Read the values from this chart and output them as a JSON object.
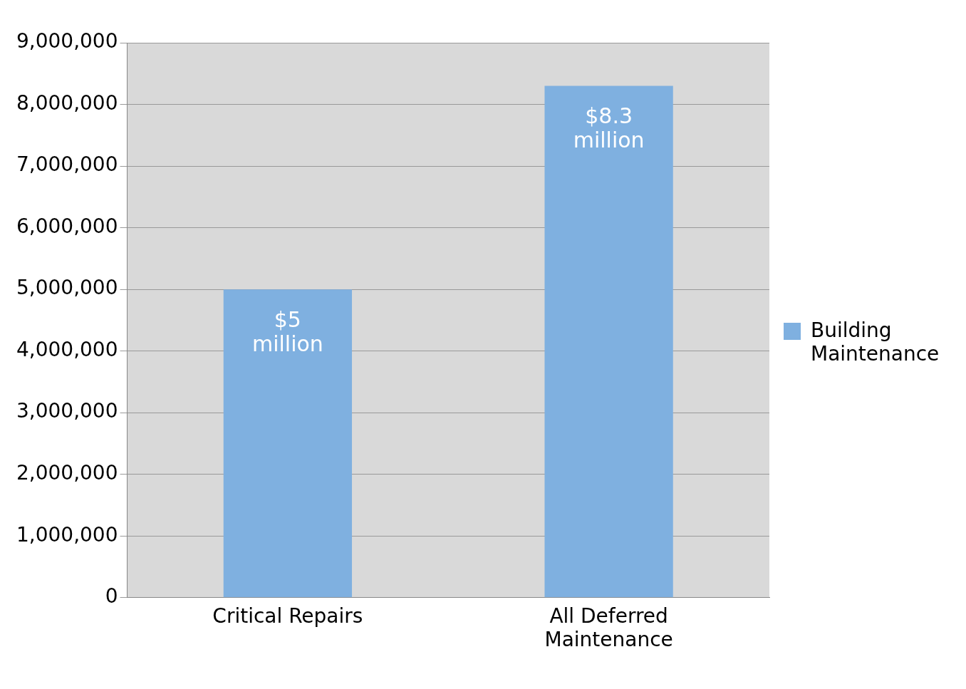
{
  "chart_data": {
    "type": "bar",
    "categories": [
      "Critical Repairs",
      "All Deferred Maintenance"
    ],
    "series": [
      {
        "name": "Building Maintenance",
        "color": "#7fb0e0",
        "values": [
          5000000,
          8300000
        ],
        "value_labels": [
          "$5 million",
          "$8.3 million"
        ]
      }
    ],
    "ylim": [
      0,
      9000000
    ],
    "yticks": [
      0,
      {
        "value": 1000000,
        "label": "1,000,000"
      },
      {
        "value": 2000000,
        "label": "2,000,000"
      },
      {
        "value": 3000000,
        "label": "3,000,000"
      },
      {
        "value": 4000000,
        "label": "4,000,000"
      },
      {
        "value": 5000000,
        "label": "5,000,000"
      },
      {
        "value": 6000000,
        "label": "6,000,000"
      },
      {
        "value": 7000000,
        "label": "7,000,000"
      },
      {
        "value": 8000000,
        "label": "8,000,000"
      },
      {
        "value": 9000000,
        "label": "9,000,000"
      }
    ],
    "grid": "y",
    "legend": "right"
  }
}
